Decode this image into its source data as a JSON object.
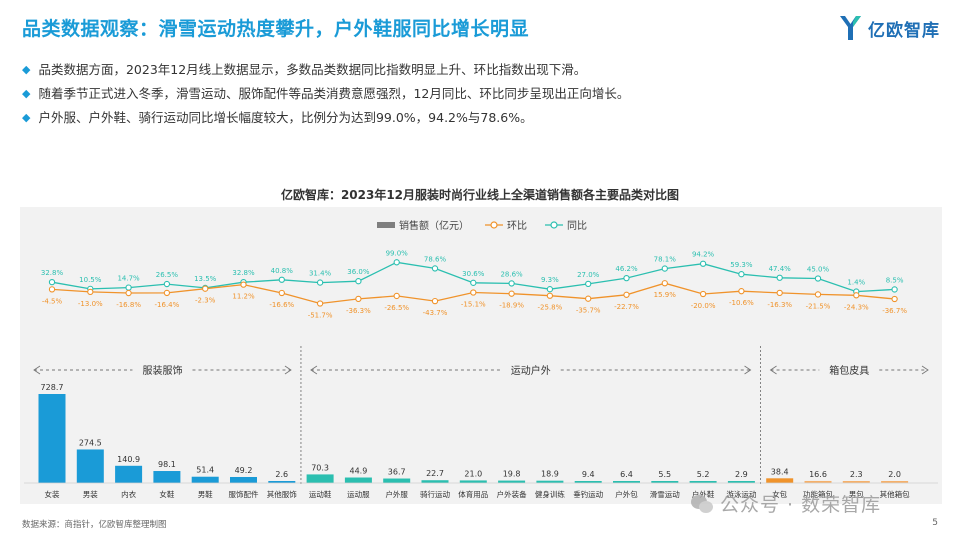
{
  "header": {
    "title": "品类数据观察：滑雪运动热度攀升，户外鞋服同比增长明显",
    "logo_text": "亿欧智库"
  },
  "bullets": [
    "品类数据方面，2023年12月线上数据显示，多数品类数据同比指数明显上升、环比指数出现下滑。",
    "随着季节正式进入冬季，滑雪运动、服饰配件等品类消费意愿强烈，12月同比、环比同步呈现出正向增长。",
    "户外服、户外鞋、骑行运动同比增长幅度较大，比例分为达到99.0%，94.2%与78.6%。"
  ],
  "footer": {
    "source": "数据来源：商指针，亿欧智库整理制图",
    "page": "5",
    "watermark": "公众号 · 数荣智库"
  },
  "colors": {
    "bar": "#1a9bd7",
    "bar_light": "#2bbfb0",
    "bar_orange": "#f0932b",
    "mom": "#f0932b",
    "yoy": "#2bbfb0",
    "title": "#1a9bd7"
  },
  "chart_data": {
    "type": "bar",
    "title": "亿欧智库：2023年12月服装时尚行业线上全渠道销售额各主要品类对比图",
    "legend": [
      "销售额（亿元）",
      "环比",
      "同比"
    ],
    "categories": [
      "女装",
      "男装",
      "内衣",
      "女鞋",
      "男鞋",
      "服饰配件",
      "其他服饰",
      "运动鞋",
      "运动服",
      "户外服",
      "骑行运动",
      "体育用品",
      "户外装备",
      "健身训练",
      "垂钓运动",
      "户外包",
      "滑雪运动",
      "户外鞋",
      "游泳运动",
      "女包",
      "功能箱包",
      "男包",
      "其他箱包"
    ],
    "groups": [
      {
        "label": "服装服饰",
        "count": 7
      },
      {
        "label": "运动户外",
        "count": 12
      },
      {
        "label": "箱包皮具",
        "count": 4
      }
    ],
    "series": [
      {
        "name": "销售额（亿元）",
        "type": "bar",
        "values": [
          728.7,
          274.5,
          140.9,
          98.1,
          51.4,
          49.2,
          2.6,
          70.3,
          44.9,
          36.7,
          22.7,
          21.0,
          19.8,
          18.9,
          9.4,
          6.4,
          5.5,
          5.2,
          2.9,
          38.4,
          16.6,
          2.3,
          2.0
        ],
        "labels": [
          "728.7",
          "274.5",
          "140.9",
          "98.1",
          "51.4",
          "49.2",
          "2.6",
          "70.3",
          "44.9",
          "36.7",
          "22.7",
          "21.0",
          "19.8",
          "18.9",
          "9.4",
          "6.4",
          "5.5",
          "5.2",
          "2.9",
          "38.4",
          "16.6",
          "2.3",
          "2.0"
        ]
      },
      {
        "name": "环比",
        "type": "line",
        "values": [
          -4.5,
          -13.0,
          -16.8,
          -16.4,
          -2.3,
          11.2,
          -16.6,
          -51.7,
          -36.3,
          -26.5,
          -43.7,
          -15.1,
          -18.9,
          -25.8,
          -35.7,
          -22.7,
          15.9,
          -20.0,
          -10.6,
          -16.3,
          -21.5,
          -24.3,
          -36.7
        ],
        "labels": [
          "-4.5%",
          "-13.0%",
          "-16.8%",
          "-16.4%",
          "-2.3%",
          "11.2%",
          "-16.6%",
          "-51.7%",
          "-36.3%",
          "-26.5%",
          "-43.7%",
          "-15.1%",
          "-18.9%",
          "-25.8%",
          "-35.7%",
          "-22.7%",
          "15.9%",
          "-20.0%",
          "-10.6%",
          "-16.3%",
          "-21.5%",
          "-24.3%",
          "-36.7%"
        ]
      },
      {
        "name": "同比",
        "type": "line",
        "values": [
          32.8,
          10.5,
          14.7,
          26.5,
          13.5,
          32.8,
          40.8,
          31.4,
          36.0,
          99.0,
          78.6,
          30.6,
          28.6,
          9.3,
          27.0,
          46.2,
          78.1,
          94.2,
          59.3,
          47.4,
          45.0,
          1.4,
          8.5
        ],
        "labels": [
          "32.8%",
          "10.5%",
          "14.7%",
          "26.5%",
          "13.5%",
          "32.8%",
          "40.8%",
          "31.4%",
          "36.0%",
          "99.0%",
          "78.6%",
          "30.6%",
          "28.6%",
          "9.3%",
          "27.0%",
          "46.2%",
          "78.1%",
          "94.2%",
          "59.3%",
          "47.4%",
          "45.0%",
          "1.4%",
          "8.5%"
        ]
      }
    ]
  }
}
